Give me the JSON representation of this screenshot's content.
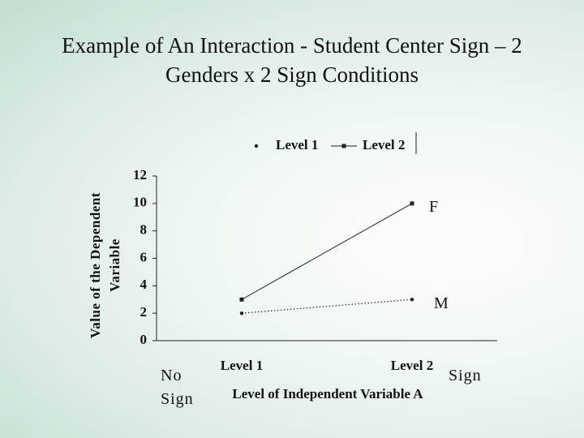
{
  "chart_data": {
    "type": "line",
    "title": "Example of An Interaction - Student Center Sign – 2 Genders x 2 Sign Conditions",
    "x_label": "Level of Independent Variable A",
    "y_label": "Value of the Dependent Variable",
    "categories": [
      "Level 1",
      "Level 2"
    ],
    "series": [
      {
        "name": "Level 1",
        "color": "#222222",
        "style": "dotted",
        "marker": "circle",
        "values": [
          2,
          3
        ]
      },
      {
        "name": "Level 2",
        "color": "#222222",
        "style": "solid",
        "marker": "square",
        "values": [
          3,
          10
        ]
      }
    ],
    "ylim": [
      0,
      12
    ],
    "yticks": [
      0,
      2,
      4,
      6,
      8,
      10,
      12
    ],
    "legend": "top",
    "annotations": [
      "F",
      "M",
      "No Sign",
      "Sign"
    ]
  }
}
